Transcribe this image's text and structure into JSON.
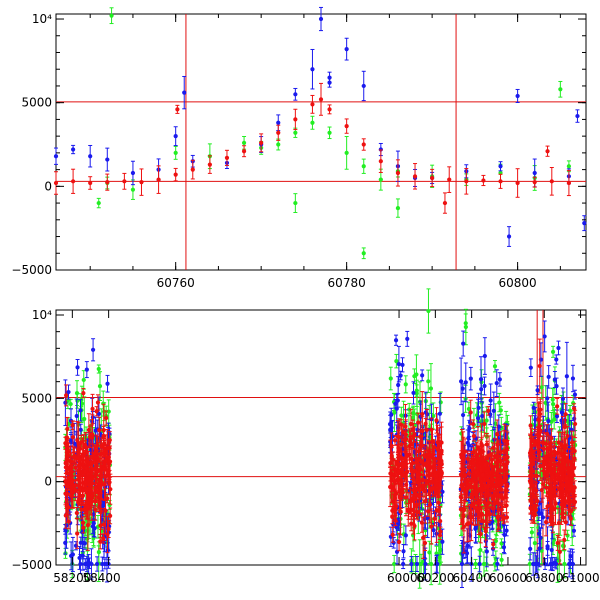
{
  "chart_data": [
    {
      "type": "scatter",
      "title": "",
      "xlabel": "",
      "ylabel": "",
      "xlim": [
        60746,
        60808
      ],
      "ylim": [
        -5000,
        10300
      ],
      "xticks": [
        60760,
        60780,
        60800
      ],
      "xtick_labels": [
        "60760",
        "60780",
        "60800"
      ],
      "yticks": [
        -5000,
        0,
        5000,
        10000
      ],
      "ytick_labels": [
        "−5000",
        "0",
        "5000",
        "10⁴"
      ],
      "hlines": [
        300,
        5050
      ],
      "vlines": [
        60761.2,
        60792.8
      ],
      "series": [
        {
          "name": "green",
          "color": "#22ee22",
          "x": [
            60752,
            60755,
            60760,
            60764,
            60768,
            60770,
            60772,
            60774,
            60776,
            60778,
            60780,
            60782,
            60784,
            60786,
            60790,
            60794,
            60798,
            60802,
            60806,
            60751,
            60774,
            60782,
            60805,
            60752.5,
            60786
          ],
          "y": [
            200,
            -200,
            2000,
            1800,
            2600,
            2300,
            2500,
            3200,
            3800,
            3200,
            2000,
            1200,
            400,
            900,
            600,
            400,
            800,
            500,
            1200,
            -1000,
            -1000,
            -4000,
            5800,
            10200,
            -1300
          ]
        },
        {
          "name": "blue",
          "color": "#1a1aee",
          "x": [
            60746,
            60748,
            60750,
            60752,
            60755,
            60758,
            60760,
            60762,
            60766,
            60770,
            60772,
            60774,
            60776,
            60777,
            60778,
            60780,
            60782,
            60784,
            60786,
            60788,
            60790,
            60794,
            60798,
            60802,
            60806,
            60807,
            60761,
            60778,
            60800,
            60799,
            60807.8
          ],
          "y": [
            1800,
            2200,
            1800,
            1600,
            800,
            1000,
            3000,
            1500,
            1400,
            2500,
            3800,
            5500,
            7000,
            10000,
            6500,
            8200,
            6000,
            2200,
            1200,
            500,
            500,
            900,
            1200,
            800,
            600,
            4200,
            5600,
            6200,
            5400,
            -3000,
            -2200
          ]
        },
        {
          "name": "red",
          "color": "#ee1111",
          "x": [
            60746,
            60748,
            60750,
            60752,
            60754,
            60756,
            60758,
            60760,
            60762,
            60764,
            60766,
            60768,
            60770,
            60772,
            60774,
            60776,
            60777,
            60778,
            60780,
            60782,
            60784,
            60786,
            60788,
            60790,
            60792,
            60794,
            60796,
            60798,
            60800,
            60802,
            60804,
            60806,
            60760.2,
            60791.5,
            60803.5
          ],
          "y": [
            200,
            300,
            200,
            250,
            300,
            250,
            400,
            700,
            1000,
            1300,
            1700,
            2100,
            2600,
            3200,
            4000,
            4900,
            5200,
            4600,
            3600,
            2500,
            1500,
            800,
            600,
            500,
            400,
            300,
            350,
            300,
            200,
            250,
            300,
            200,
            4600,
            -1000,
            2100
          ]
        }
      ]
    },
    {
      "type": "scatter",
      "title": "",
      "xlabel": "",
      "ylabel": "",
      "xlim": [
        58110,
        61030
      ],
      "ylim": [
        -5000,
        10300
      ],
      "xticks": [
        58200,
        58400,
        60000,
        60200,
        60400,
        60600,
        60800,
        61000
      ],
      "xtick_labels": [
        "58200",
        "58400",
        "60000",
        "60200",
        "60400",
        "60600",
        "60800",
        "61000"
      ],
      "yticks": [
        -5000,
        0,
        5000,
        10000
      ],
      "ytick_labels": [
        "−5000",
        "0",
        "5000",
        "10⁴"
      ],
      "hlines": [
        300,
        5050
      ],
      "vlines": [
        60761,
        60793
      ],
      "seasons": [
        {
          "start": 58160,
          "end": 58410
        },
        {
          "start": 59950,
          "end": 60240
        },
        {
          "start": 60340,
          "end": 60600
        },
        {
          "start": 60720,
          "end": 60970
        }
      ],
      "series": [
        {
          "name": "green",
          "color": "#22ee22",
          "amplitude": 3000
        },
        {
          "name": "blue",
          "color": "#1a1aee",
          "amplitude": 3500
        },
        {
          "name": "red",
          "color": "#ee1111",
          "amplitude": 1500
        }
      ]
    }
  ]
}
